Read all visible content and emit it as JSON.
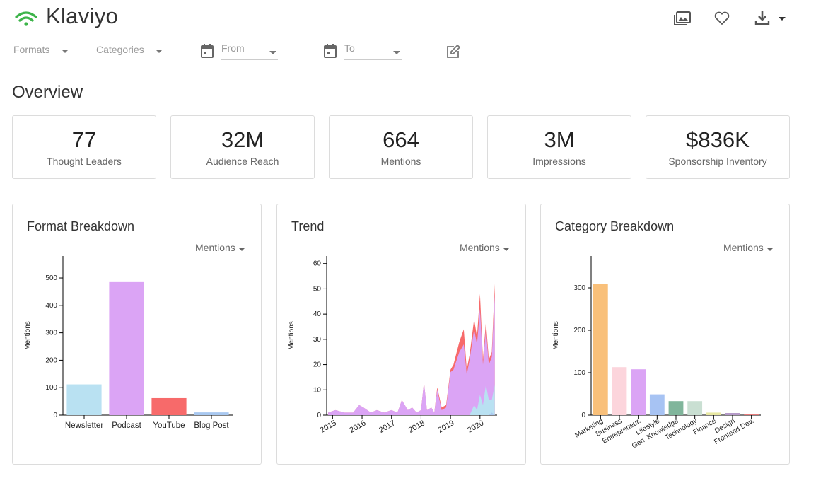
{
  "header": {
    "app_title": "Klaviyo",
    "brand_color": "#3db44a",
    "icons": [
      "gallery-icon",
      "heart-icon",
      "download-icon",
      "chevron-down-icon"
    ]
  },
  "filters": {
    "formats_label": "Formats",
    "categories_label": "Categories",
    "from_placeholder": "From",
    "to_placeholder": "To"
  },
  "overview": {
    "title": "Overview",
    "kpis": [
      {
        "value": "77",
        "label": "Thought Leaders"
      },
      {
        "value": "32M",
        "label": "Audience Reach"
      },
      {
        "value": "664",
        "label": "Mentions"
      },
      {
        "value": "3M",
        "label": "Impressions"
      },
      {
        "value": "$836K",
        "label": "Sponsorship Inventory"
      }
    ]
  },
  "panels": {
    "format": {
      "title": "Format Breakdown",
      "metric": "Mentions"
    },
    "trend": {
      "title": "Trend",
      "metric": "Mentions"
    },
    "category": {
      "title": "Category Breakdown",
      "metric": "Mentions"
    }
  },
  "chart_data": [
    {
      "type": "bar",
      "title": "Format Breakdown",
      "ylabel": "Mentions",
      "ylim": [
        0,
        580
      ],
      "yticks": [
        0,
        100,
        200,
        300,
        400,
        500
      ],
      "categories": [
        "Newsletter",
        "Podcast",
        "YouTube",
        "Blog Post"
      ],
      "values": [
        112,
        485,
        62,
        10
      ],
      "colors": [
        "#b9e1f2",
        "#dba4f5",
        "#f76a6a",
        "#a8c8f0"
      ]
    },
    {
      "type": "area",
      "title": "Trend",
      "ylabel": "Mentions",
      "ylim": [
        0,
        63
      ],
      "yticks": [
        0,
        10,
        20,
        30,
        40,
        50,
        60
      ],
      "xticks": [
        "2015",
        "2016",
        "2017",
        "2018",
        "2019",
        "2020"
      ],
      "x": [
        2014.85,
        2015.1,
        2015.4,
        2015.7,
        2015.9,
        2016.05,
        2016.3,
        2016.5,
        2016.75,
        2017.0,
        2017.2,
        2017.35,
        2017.55,
        2017.7,
        2017.85,
        2018.0,
        2018.1,
        2018.2,
        2018.35,
        2018.45,
        2018.55,
        2018.7,
        2018.85,
        2019.0,
        2019.1,
        2019.3,
        2019.45,
        2019.55,
        2019.65,
        2019.8,
        2019.9,
        2020.0,
        2020.1,
        2020.2,
        2020.3,
        2020.4,
        2020.5
      ],
      "series": [
        {
          "name": "Blog Post",
          "color": "#a8c8f0",
          "values": [
            0,
            0,
            0,
            0,
            0,
            0,
            0,
            0,
            0,
            0,
            0,
            0,
            0,
            0,
            0,
            0,
            0,
            0,
            0,
            0,
            0,
            0,
            0,
            0,
            0,
            0,
            0,
            0,
            0,
            0,
            0,
            0,
            0,
            0,
            0,
            1,
            0
          ]
        },
        {
          "name": "Newsletter",
          "color": "#b9e1f2",
          "values": [
            0,
            0,
            0,
            0,
            0,
            0,
            0,
            0,
            0,
            0,
            0,
            0,
            0,
            0,
            0,
            0,
            0,
            0,
            0,
            0,
            0,
            0,
            0,
            0,
            0,
            0,
            0,
            0,
            0,
            4,
            2,
            8,
            4,
            12,
            6,
            5,
            12
          ]
        },
        {
          "name": "Podcast",
          "color": "#dba4f5",
          "values": [
            1,
            2,
            1,
            1,
            4,
            3,
            1,
            2,
            1,
            2,
            1,
            6,
            2,
            3,
            1,
            2,
            13,
            2,
            3,
            1,
            10,
            2,
            3,
            17,
            18,
            25,
            28,
            16,
            22,
            30,
            26,
            34,
            16,
            22,
            14,
            17,
            36
          ]
        },
        {
          "name": "YouTube",
          "color": "#f76a6a",
          "values": [
            0,
            0,
            0,
            0,
            0,
            0,
            0,
            0,
            0,
            0,
            0,
            0,
            0,
            0,
            0,
            0,
            0,
            0,
            0,
            0,
            1,
            1,
            1,
            1,
            2,
            4,
            6,
            2,
            2,
            4,
            3,
            6,
            2,
            3,
            2,
            2,
            4
          ]
        }
      ]
    },
    {
      "type": "bar",
      "title": "Category Breakdown",
      "ylabel": "Mentions",
      "ylim": [
        0,
        375
      ],
      "yticks": [
        0,
        100,
        200,
        300
      ],
      "categories": [
        "Marketing",
        "Business",
        "Entrepreneur.",
        "Lifestyle",
        "Gen. Knowledge",
        "Technology",
        "Finance",
        "Design",
        "Frontend Dev."
      ],
      "values": [
        310,
        113,
        108,
        49,
        33,
        33,
        6,
        5,
        2
      ],
      "colors": [
        "#f9c07a",
        "#fcd5dc",
        "#dba4f5",
        "#a7c3f3",
        "#80b59b",
        "#c9dfd2",
        "#e8e8a2",
        "#b59ac8",
        "#e87a7a"
      ]
    }
  ]
}
